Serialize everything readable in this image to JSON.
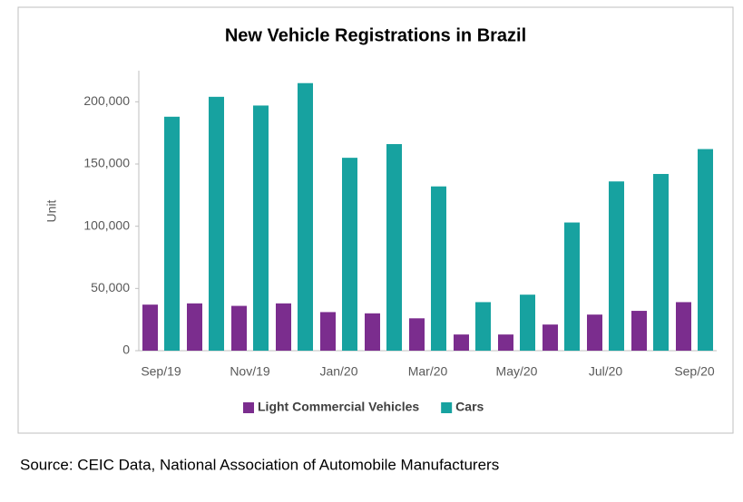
{
  "chart_data": {
    "type": "bar",
    "title": "New Vehicle Registrations in Brazil",
    "y_label": "Unit",
    "categories": [
      "Sep/19",
      null,
      "Nov/19",
      null,
      "Jan/20",
      null,
      "Mar/20",
      null,
      "May/20",
      null,
      "Jul/20",
      null,
      "Sep/20"
    ],
    "series": [
      {
        "name": "Light Commercial Vehicles",
        "color": "#7b2d8e",
        "values": [
          37000,
          38000,
          36000,
          38000,
          31000,
          30000,
          26000,
          13000,
          13000,
          21000,
          29000,
          32000,
          39000
        ]
      },
      {
        "name": "Cars",
        "color": "#17a2a0",
        "values": [
          188000,
          204000,
          197000,
          215000,
          155000,
          166000,
          132000,
          39000,
          45000,
          103000,
          136000,
          142000,
          162000
        ]
      }
    ],
    "ylim": [
      0,
      225000
    ],
    "yticks": [
      0,
      {
        "value": 50000,
        "label": "50,000"
      },
      {
        "value": 100000,
        "label": "100,000"
      },
      {
        "value": 150000,
        "label": "150,000"
      },
      {
        "value": 200000,
        "label": "200,000"
      }
    ],
    "grid": false,
    "legend": "bottom"
  },
  "source": "Source: CEIC Data, National Association of Automobile Manufacturers"
}
